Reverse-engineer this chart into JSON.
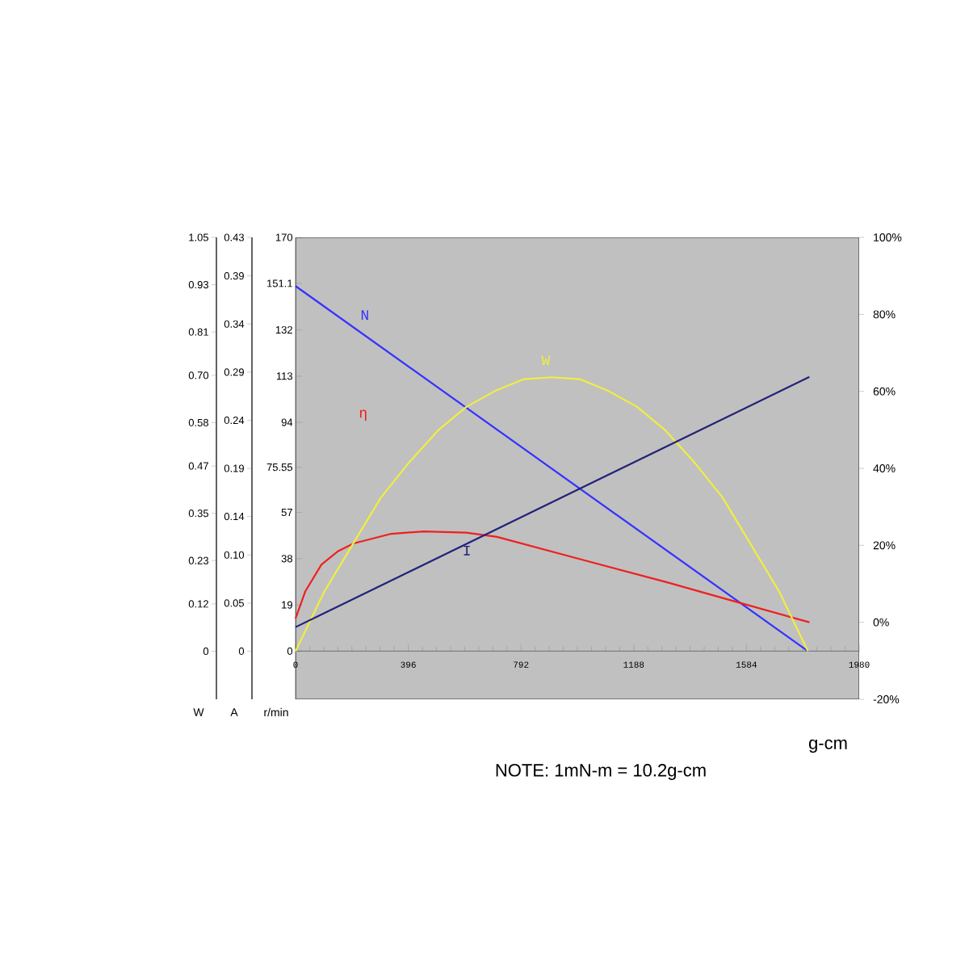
{
  "chart_data": [
    {
      "type": "line",
      "ylabel": "W",
      "xlim": [
        0,
        1980
      ],
      "ylim": [
        -0.122,
        1.05
      ],
      "yticks": [
        {
          "value": 0,
          "label": "0"
        },
        {
          "value": 0.12,
          "label": "0.12"
        },
        {
          "value": 0.23,
          "label": "0.23"
        },
        {
          "value": 0.35,
          "label": "0.35"
        },
        {
          "value": 0.47,
          "label": "0.47"
        },
        {
          "value": 0.58,
          "label": "0.58"
        },
        {
          "value": 0.7,
          "label": "0.70"
        },
        {
          "value": 0.81,
          "label": "0.81"
        },
        {
          "value": 0.93,
          "label": "0.93"
        },
        {
          "value": 1.05,
          "label": "1.05"
        }
      ],
      "tick_labels": "y",
      "series": [
        {
          "name": "W",
          "color": "#f0ee40",
          "x": [
            0,
            100,
            200,
            300,
            400,
            500,
            600,
            700,
            800,
            900,
            1000,
            1100,
            1200,
            1300,
            1400,
            1500,
            1600,
            1700,
            1800
          ],
          "values": [
            0,
            0.15,
            0.27,
            0.39,
            0.48,
            0.56,
            0.62,
            0.66,
            0.69,
            0.695,
            0.69,
            0.66,
            0.62,
            0.56,
            0.48,
            0.39,
            0.27,
            0.15,
            0
          ]
        }
      ]
    },
    {
      "type": "line",
      "ylabel": "A",
      "xlim": [
        0,
        1980
      ],
      "ylim": [
        -0.05,
        0.43
      ],
      "yticks": [
        {
          "value": 0,
          "label": "0"
        },
        {
          "value": 0.05,
          "label": "0.05"
        },
        {
          "value": 0.1,
          "label": "0.10"
        },
        {
          "value": 0.14,
          "label": "0.14"
        },
        {
          "value": 0.19,
          "label": "0.19"
        },
        {
          "value": 0.24,
          "label": "0.24"
        },
        {
          "value": 0.29,
          "label": "0.29"
        },
        {
          "value": 0.34,
          "label": "0.34"
        },
        {
          "value": 0.39,
          "label": "0.39"
        },
        {
          "value": 0.43,
          "label": "0.43"
        }
      ],
      "tick_labels": "y",
      "series": [
        {
          "name": "I",
          "color": "#22227a",
          "x": [
            0,
            1805
          ],
          "values": [
            0.025,
            0.285
          ]
        }
      ]
    },
    {
      "type": "line",
      "xlabel": "g-cm",
      "ylabel": "r/min",
      "annotations": [
        "NOTE: 1mN-m = 10.2g-cm"
      ],
      "xlim": [
        0,
        1980
      ],
      "xticks": [
        0,
        396,
        792,
        1188,
        1584,
        1980
      ],
      "ylim": [
        -19.8,
        170
      ],
      "yticks": [
        0,
        19,
        38,
        57,
        75.55,
        94,
        113,
        132,
        151.1,
        170
      ],
      "y2lim": [
        -20,
        100
      ],
      "y2ticks": [
        {
          "value": -20,
          "label": "-20%"
        },
        {
          "value": 0,
          "label": "0%"
        },
        {
          "value": 20,
          "label": "20%"
        },
        {
          "value": 40,
          "label": "40%"
        },
        {
          "value": 60,
          "label": "60%"
        },
        {
          "value": 80,
          "label": "80%"
        },
        {
          "value": 100,
          "label": "100%"
        }
      ],
      "series": [
        {
          "name": "N",
          "color": "#3333ff",
          "x": [
            0,
            1800
          ],
          "values": [
            150,
            0
          ]
        },
        {
          "name": "η",
          "color": "#ee2020",
          "axis": "y2",
          "x": [
            0,
            34,
            91,
            150,
            204,
            336,
            450,
            600,
            708,
            1000,
            1300,
            1554,
            1805
          ],
          "values": [
            1,
            8,
            15,
            18.5,
            20.5,
            23,
            23.6,
            23.3,
            22.2,
            16.4,
            10.5,
            5.2,
            0
          ]
        }
      ]
    }
  ]
}
